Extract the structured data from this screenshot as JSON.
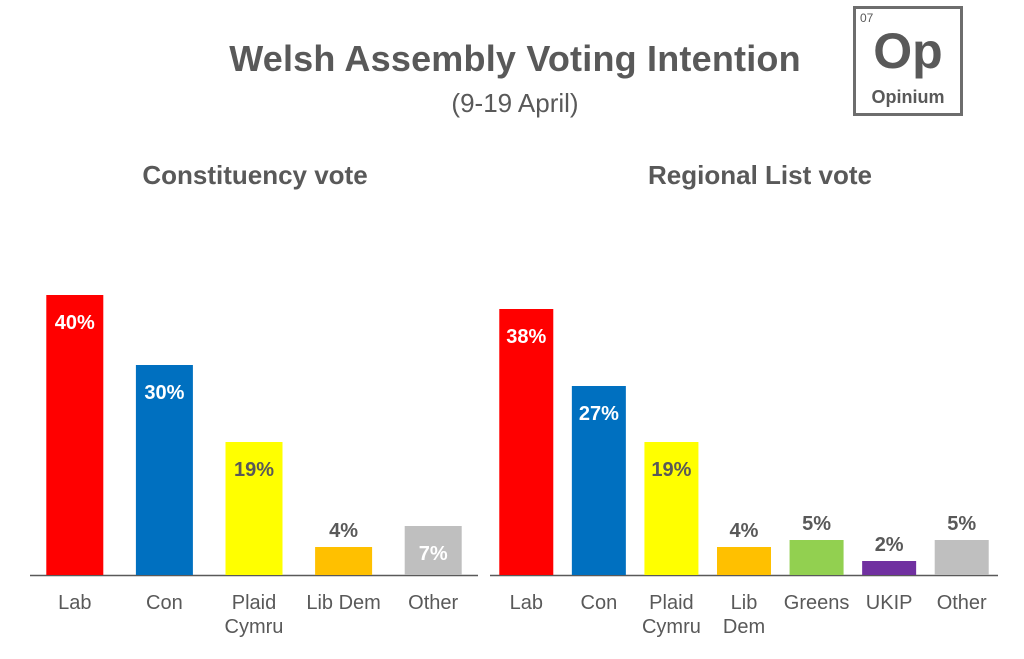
{
  "title": "Welsh Assembly Voting Intention",
  "subtitle": "(9-19 April)",
  "logo": {
    "number": "07",
    "symbol": "Op",
    "name": "Opinium"
  },
  "colors": {
    "Lab": "#ff0000",
    "Con": "#0070c0",
    "Plaid": "#ffff00",
    "LibDem": "#ffc000",
    "Other": "#bfbfbf",
    "Greens": "#92d050",
    "UKIP": "#7030a0",
    "axis": "#595959"
  },
  "chart_data": [
    {
      "type": "bar",
      "title": "Constituency vote",
      "categories": [
        [
          "Lab"
        ],
        [
          "Con"
        ],
        [
          "Plaid",
          "Cymru"
        ],
        [
          "Lib Dem"
        ],
        [
          "Other"
        ]
      ],
      "values": [
        40,
        30,
        19,
        4,
        7
      ],
      "value_labels": [
        "40%",
        "30%",
        "19%",
        "4%",
        "7%"
      ],
      "color_keys": [
        "Lab",
        "Con",
        "Plaid",
        "LibDem",
        "Other"
      ],
      "ylim": [
        0,
        40
      ]
    },
    {
      "type": "bar",
      "title": "Regional List vote",
      "categories": [
        [
          "Lab"
        ],
        [
          "Con"
        ],
        [
          "Plaid",
          "Cymru"
        ],
        [
          "Lib",
          "Dem"
        ],
        [
          "Greens"
        ],
        [
          "UKIP"
        ],
        [
          "Other"
        ]
      ],
      "values": [
        38,
        27,
        19,
        4,
        5,
        2,
        5
      ],
      "value_labels": [
        "38%",
        "27%",
        "19%",
        "4%",
        "5%",
        "2%",
        "5%"
      ],
      "color_keys": [
        "Lab",
        "Con",
        "Plaid",
        "LibDem",
        "Greens",
        "UKIP",
        "Other"
      ],
      "ylim": [
        0,
        40
      ]
    }
  ]
}
